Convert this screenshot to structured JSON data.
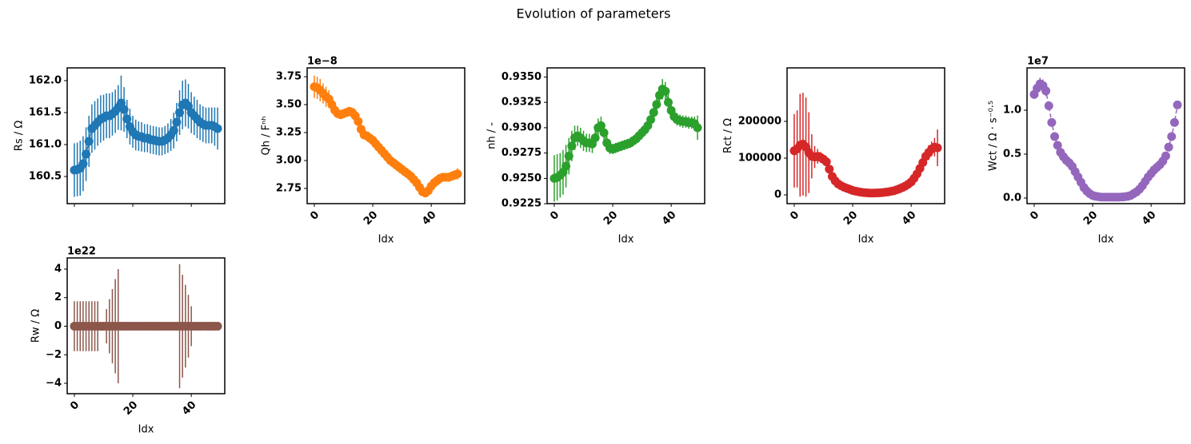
{
  "title": "Evolution of parameters",
  "chart_data": [
    {
      "type": "errorbar",
      "ylabel": "Rs / Ω",
      "color": "#1f77b4",
      "linestyle": "solid",
      "xticklabels": false,
      "xlim": [
        -2.45,
        51.45
      ],
      "xticks": [
        0,
        20,
        40
      ],
      "ylim": [
        160.075,
        162.2
      ],
      "yticks": [
        160.5,
        {
          "value": 161,
          "label": "161.0"
        },
        161.5,
        {
          "value": 162,
          "label": "162.0"
        }
      ],
      "x": [
        0,
        1,
        2,
        3,
        4,
        5,
        6,
        7,
        8,
        9,
        10,
        11,
        12,
        13,
        14,
        15,
        16,
        17,
        18,
        19,
        20,
        21,
        22,
        23,
        24,
        25,
        26,
        27,
        28,
        29,
        30,
        31,
        32,
        33,
        34,
        35,
        36,
        37,
        38,
        39,
        40,
        41,
        42,
        43,
        44,
        45,
        46,
        47,
        48,
        49
      ],
      "values": [
        160.6,
        160.61,
        160.63,
        160.7,
        160.85,
        161.05,
        161.25,
        161.3,
        161.35,
        161.4,
        161.42,
        161.45,
        161.45,
        161.48,
        161.52,
        161.58,
        161.65,
        161.55,
        161.4,
        161.28,
        161.2,
        161.15,
        161.13,
        161.12,
        161.1,
        161.1,
        161.08,
        161.07,
        161.06,
        161.05,
        161.05,
        161.07,
        161.1,
        161.15,
        161.22,
        161.35,
        161.5,
        161.62,
        161.65,
        161.6,
        161.5,
        161.45,
        161.4,
        161.35,
        161.32,
        161.3,
        161.3,
        161.3,
        161.28,
        161.25
      ],
      "errors": [
        0.42,
        0.42,
        0.43,
        0.43,
        0.42,
        0.4,
        0.38,
        0.38,
        0.37,
        0.37,
        0.36,
        0.35,
        0.35,
        0.34,
        0.34,
        0.35,
        0.43,
        0.35,
        0.3,
        0.28,
        0.25,
        0.24,
        0.23,
        0.23,
        0.22,
        0.22,
        0.22,
        0.22,
        0.22,
        0.22,
        0.22,
        0.22,
        0.23,
        0.25,
        0.28,
        0.3,
        0.35,
        0.38,
        0.37,
        0.35,
        0.32,
        0.3,
        0.3,
        0.28,
        0.28,
        0.28,
        0.28,
        0.28,
        0.3,
        0.33
      ]
    },
    {
      "type": "errorbar",
      "ylabel": "Qh / Fⁿʰ",
      "xlabel": "Idx",
      "offset_text": "1e−8",
      "color": "#ff7f0e",
      "linestyle": "solid",
      "xlim": [
        -2.45,
        51.45
      ],
      "xticks": [
        0,
        20,
        40
      ],
      "ylim": [
        2.614,
        3.829
      ],
      "yticks": [
        2.75,
        {
          "value": 3,
          "label": "3.00"
        },
        3.25,
        {
          "value": 3.5,
          "label": "3.50"
        },
        3.75
      ],
      "x": [
        0,
        1,
        2,
        3,
        4,
        5,
        6,
        7,
        8,
        9,
        10,
        11,
        12,
        13,
        14,
        15,
        16,
        17,
        18,
        19,
        20,
        21,
        22,
        23,
        24,
        25,
        26,
        27,
        28,
        29,
        30,
        31,
        32,
        33,
        34,
        35,
        36,
        37,
        38,
        39,
        40,
        41,
        42,
        43,
        44,
        45,
        46,
        47,
        48,
        49
      ],
      "values": [
        3.66,
        3.65,
        3.63,
        3.6,
        3.57,
        3.55,
        3.5,
        3.45,
        3.42,
        3.41,
        3.42,
        3.43,
        3.44,
        3.43,
        3.4,
        3.35,
        3.28,
        3.23,
        3.22,
        3.2,
        3.18,
        3.15,
        3.12,
        3.09,
        3.06,
        3.03,
        3.0,
        2.98,
        2.96,
        2.94,
        2.92,
        2.9,
        2.88,
        2.86,
        2.83,
        2.8,
        2.76,
        2.72,
        2.71,
        2.73,
        2.77,
        2.8,
        2.82,
        2.84,
        2.85,
        2.85,
        2.85,
        2.86,
        2.87,
        2.88
      ],
      "errors": [
        0.1,
        0.1,
        0.1,
        0.09,
        0.09,
        0.08,
        0.07,
        0.05,
        0.04,
        0.04,
        0.04,
        0.04,
        0.04,
        0.04,
        0.04,
        0.05,
        0.05,
        0.04,
        0.03,
        0.03,
        0.03,
        0.03,
        0.03,
        0.03,
        0.03,
        0.03,
        0.03,
        0.03,
        0.03,
        0.03,
        0.03,
        0.03,
        0.03,
        0.03,
        0.03,
        0.03,
        0.03,
        0.03,
        0.03,
        0.03,
        0.03,
        0.03,
        0.03,
        0.03,
        0.03,
        0.03,
        0.03,
        0.03,
        0.04,
        0.05
      ]
    },
    {
      "type": "errorbar",
      "ylabel": "nh / -",
      "xlabel": "Idx",
      "color": "#2ca02c",
      "linestyle": "solid",
      "xlim": [
        -2.45,
        51.45
      ],
      "xticks": [
        0,
        20,
        40
      ],
      "ylim": [
        0.92251,
        0.9359
      ],
      "yticks": [
        0.9225,
        {
          "value": 0.925,
          "label": "0.9250"
        },
        0.9275,
        {
          "value": 0.93,
          "label": "0.9300"
        },
        0.9325,
        {
          "value": 0.935,
          "label": "0.9350"
        }
      ],
      "x": [
        0,
        1,
        2,
        3,
        4,
        5,
        6,
        7,
        8,
        9,
        10,
        11,
        12,
        13,
        14,
        15,
        16,
        17,
        18,
        19,
        20,
        21,
        22,
        23,
        24,
        25,
        26,
        27,
        28,
        29,
        30,
        31,
        32,
        33,
        34,
        35,
        36,
        37,
        38,
        39,
        40,
        41,
        42,
        43,
        44,
        45,
        46,
        47,
        48,
        49
      ],
      "values": [
        0.925,
        0.9251,
        0.9253,
        0.9256,
        0.9262,
        0.9272,
        0.9282,
        0.929,
        0.9292,
        0.929,
        0.9287,
        0.9285,
        0.9285,
        0.9284,
        0.929,
        0.93,
        0.9302,
        0.9295,
        0.9285,
        0.928,
        0.9279,
        0.928,
        0.9281,
        0.9282,
        0.9283,
        0.9284,
        0.9285,
        0.9287,
        0.9289,
        0.9292,
        0.9295,
        0.9298,
        0.9302,
        0.9308,
        0.9315,
        0.9323,
        0.9332,
        0.9338,
        0.9336,
        0.9325,
        0.9317,
        0.9311,
        0.9308,
        0.9307,
        0.9306,
        0.9306,
        0.9305,
        0.9305,
        0.9304,
        0.93
      ],
      "errors": [
        0.0023,
        0.0023,
        0.0022,
        0.0022,
        0.0021,
        0.0018,
        0.0015,
        0.0012,
        0.001,
        0.001,
        0.001,
        0.0009,
        0.0009,
        0.0009,
        0.0009,
        0.0009,
        0.0009,
        0.0008,
        0.0007,
        0.0006,
        0.0005,
        0.0005,
        0.0005,
        0.0005,
        0.0005,
        0.0005,
        0.0005,
        0.0005,
        0.0005,
        0.0005,
        0.0005,
        0.0005,
        0.0006,
        0.0006,
        0.0007,
        0.0008,
        0.0009,
        0.001,
        0.0009,
        0.0008,
        0.0007,
        0.0006,
        0.0006,
        0.0006,
        0.0006,
        0.0006,
        0.0006,
        0.0006,
        0.0007,
        0.0012
      ]
    },
    {
      "type": "errorbar",
      "ylabel": "Rct / Ω",
      "xlabel": "Idx",
      "color": "#d62728",
      "linestyle": "solid",
      "xlim": [
        -2.45,
        51.45
      ],
      "xticks": [
        0,
        20,
        40
      ],
      "ylim": [
        -23913,
        345652
      ],
      "yticks": [
        0,
        100000,
        200000
      ],
      "x": [
        0,
        1,
        2,
        3,
        4,
        5,
        6,
        7,
        8,
        9,
        10,
        11,
        12,
        13,
        14,
        15,
        16,
        17,
        18,
        19,
        20,
        21,
        22,
        23,
        24,
        25,
        26,
        27,
        28,
        29,
        30,
        31,
        32,
        33,
        34,
        35,
        36,
        37,
        38,
        39,
        40,
        41,
        42,
        43,
        44,
        45,
        46,
        47,
        48,
        49
      ],
      "values": [
        120000,
        125000,
        135000,
        138000,
        130000,
        115000,
        105000,
        103000,
        105000,
        102000,
        97000,
        90000,
        70000,
        50000,
        38000,
        30000,
        25000,
        21000,
        18000,
        15000,
        12000,
        10000,
        8500,
        7000,
        6000,
        5500,
        5000,
        5000,
        5200,
        5500,
        6000,
        7000,
        8000,
        9500,
        11000,
        13500,
        16500,
        20000,
        24000,
        29000,
        35000,
        45000,
        57000,
        72000,
        88000,
        105000,
        115000,
        125000,
        130000,
        128000
      ],
      "errors": [
        100000,
        105000,
        140000,
        140000,
        135000,
        110000,
        60000,
        30000,
        20000,
        15000,
        10000,
        8000,
        6000,
        5000,
        4000,
        3000,
        3000,
        2500,
        2000,
        2000,
        1500,
        1500,
        1500,
        1500,
        1500,
        1500,
        1500,
        1500,
        1500,
        1500,
        1500,
        1500,
        1500,
        1500,
        1500,
        2000,
        2000,
        2500,
        2500,
        3000,
        3000,
        5000,
        8000,
        10000,
        15000,
        20000,
        20000,
        20000,
        25000,
        50000
      ]
    },
    {
      "type": "errorbar",
      "ylabel": "Wct / Ω · s⁻⁰·⁵",
      "xlabel": "Idx",
      "offset_text": "1e7",
      "color": "#9467bd",
      "linestyle": "dashed",
      "xlim": [
        -2.45,
        51.45
      ],
      "xticks": [
        0,
        20,
        40
      ],
      "ylim": [
        -0.0636,
        1.4818
      ],
      "yticks": [
        {
          "value": 0,
          "label": "0.0"
        },
        0.5,
        {
          "value": 1,
          "label": "1.0"
        }
      ],
      "x": [
        0,
        1,
        2,
        3,
        4,
        5,
        6,
        7,
        8,
        9,
        10,
        11,
        12,
        13,
        14,
        15,
        16,
        17,
        18,
        19,
        20,
        21,
        22,
        23,
        24,
        25,
        26,
        27,
        28,
        29,
        30,
        31,
        32,
        33,
        34,
        35,
        36,
        37,
        38,
        39,
        40,
        41,
        42,
        43,
        44,
        45,
        46,
        47,
        48,
        49
      ],
      "values": [
        1.18,
        1.25,
        1.3,
        1.28,
        1.22,
        1.05,
        0.86,
        0.7,
        0.6,
        0.52,
        0.47,
        0.43,
        0.4,
        0.36,
        0.3,
        0.24,
        0.18,
        0.12,
        0.08,
        0.05,
        0.03,
        0.02,
        0.015,
        0.01,
        0.01,
        0.01,
        0.01,
        0.01,
        0.01,
        0.01,
        0.012,
        0.015,
        0.02,
        0.03,
        0.05,
        0.07,
        0.1,
        0.14,
        0.19,
        0.24,
        0.28,
        0.32,
        0.35,
        0.38,
        0.42,
        0.48,
        0.58,
        0.7,
        0.86,
        1.06
      ],
      "errors": [
        0.05,
        0.06,
        0.07,
        0.07,
        0.06,
        0.05,
        0.04,
        0.03,
        0.02,
        0.02,
        0.02,
        0.02,
        0.02,
        0.02,
        0.02,
        0.02,
        0.01,
        0.01,
        0.01,
        0.01,
        0.01,
        0.01,
        0.01,
        0.01,
        0.01,
        0.01,
        0.01,
        0.01,
        0.01,
        0.01,
        0.01,
        0.01,
        0.01,
        0.01,
        0.01,
        0.01,
        0.01,
        0.01,
        0.01,
        0.01,
        0.01,
        0.01,
        0.01,
        0.01,
        0.02,
        0.02,
        0.02,
        0.03,
        0.04,
        0.04
      ]
    },
    {
      "type": "errorbar",
      "ylabel": "Rw / Ω",
      "xlabel": "Idx",
      "offset_text": "1e22",
      "color": "#8c564b",
      "linestyle": "solid",
      "xlim": [
        -2.45,
        51.45
      ],
      "xticks": [
        0,
        20,
        40
      ],
      "ylim": [
        -4.727,
        4.783
      ],
      "yticks": [
        {
          "value": -4,
          "label": "−4"
        },
        {
          "value": -2,
          "label": "−2"
        },
        0,
        2,
        4
      ],
      "x": [
        0,
        1,
        2,
        3,
        4,
        5,
        6,
        7,
        8,
        9,
        10,
        11,
        12,
        13,
        14,
        15,
        16,
        17,
        18,
        19,
        20,
        21,
        22,
        23,
        24,
        25,
        26,
        27,
        28,
        29,
        30,
        31,
        32,
        33,
        34,
        35,
        36,
        37,
        38,
        39,
        40,
        41,
        42,
        43,
        44,
        45,
        46,
        47,
        48,
        49
      ],
      "values": [
        0,
        0,
        0,
        0,
        0,
        0,
        0,
        0,
        0,
        0,
        0,
        0,
        0,
        0,
        0,
        0,
        0,
        0,
        0,
        0,
        0,
        0,
        0,
        0,
        0,
        0,
        0,
        0,
        0,
        0,
        0,
        0,
        0,
        0,
        0,
        0,
        0,
        0,
        0,
        0,
        0,
        0,
        0,
        0,
        0,
        0,
        0,
        0,
        0,
        0
      ],
      "errors": [
        1.75,
        1.75,
        1.75,
        1.75,
        1.75,
        1.75,
        1.75,
        1.75,
        1.75,
        0,
        0,
        1.2,
        1.9,
        2.6,
        3.3,
        4.0,
        0,
        0,
        0,
        0,
        0,
        0,
        0,
        0,
        0,
        0,
        0,
        0,
        0,
        0,
        0,
        0,
        0,
        0,
        0,
        0,
        4.35,
        3.6,
        2.9,
        2.2,
        1.4,
        0,
        0,
        0,
        0,
        0,
        0,
        0,
        0,
        0
      ]
    }
  ]
}
